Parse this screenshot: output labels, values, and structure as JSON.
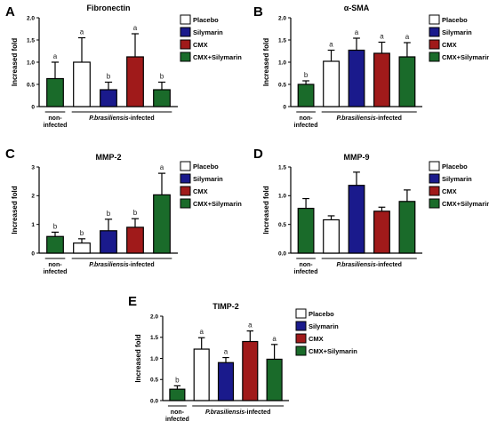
{
  "colors": {
    "placebo": "#ffffff",
    "silymarin": "#1a1a8c",
    "cmx": "#a01a1a",
    "cmx_silymarin": "#1a6b2a",
    "noninfected": "#1a6b2a",
    "axis": "#000000"
  },
  "legend": {
    "placebo": "Placebo",
    "silymarin": "Silymarin",
    "cmx": "CMX",
    "cmx_silymarin": "CMX+Silymarin"
  },
  "groups": {
    "noninfected_line1": "non-",
    "noninfected_line2": "infected",
    "infected_species": "P.brasiliensis",
    "infected_suffix": "-infected"
  },
  "chart_data": [
    {
      "panel": "A",
      "type": "bar",
      "title": "Fibronectin",
      "ylabel": "Increased fold",
      "ylim": [
        0,
        2
      ],
      "yticks": [
        "0",
        "0.5",
        "1.0",
        "1.5",
        "2.0"
      ],
      "categories": [
        "non-infected",
        "Placebo",
        "Silymarin",
        "CMX",
        "CMX+Silymarin"
      ],
      "values": [
        0.63,
        1.0,
        0.38,
        1.12,
        0.38
      ],
      "errors": [
        0.37,
        0.55,
        0.17,
        0.52,
        0.17
      ],
      "sig": [
        "a",
        "a",
        "b",
        "a",
        "b"
      ]
    },
    {
      "panel": "B",
      "type": "bar",
      "title": "α-SMA",
      "ylabel": "Increased fold",
      "ylim": [
        0,
        2
      ],
      "yticks": [
        "0",
        "0.5",
        "1.0",
        "1.5",
        "2.0"
      ],
      "categories": [
        "non-infected",
        "Placebo",
        "Silymarin",
        "CMX",
        "CMX+Silymarin"
      ],
      "values": [
        0.5,
        1.02,
        1.27,
        1.2,
        1.12
      ],
      "errors": [
        0.08,
        0.25,
        0.27,
        0.25,
        0.32
      ],
      "sig": [
        "b",
        "a",
        "a",
        "a",
        "a"
      ]
    },
    {
      "panel": "C",
      "type": "bar",
      "title": "MMP-2",
      "ylabel": "Increased fold",
      "ylim": [
        0,
        3
      ],
      "yticks": [
        "0",
        "1",
        "2",
        "3"
      ],
      "categories": [
        "non-infected",
        "Placebo",
        "Silymarin",
        "CMX",
        "CMX+Silymarin"
      ],
      "values": [
        0.58,
        0.35,
        0.78,
        0.9,
        2.03
      ],
      "errors": [
        0.15,
        0.15,
        0.4,
        0.3,
        0.75
      ],
      "sig": [
        "b",
        "b",
        "b",
        "b",
        "a"
      ]
    },
    {
      "panel": "D",
      "type": "bar",
      "title": "MMP-9",
      "ylabel": "Increased fold",
      "ylim": [
        0,
        1.5
      ],
      "yticks": [
        "0.0",
        "0.5",
        "1.0",
        "1.5"
      ],
      "categories": [
        "non-infected",
        "Placebo",
        "Silymarin",
        "CMX",
        "CMX+Silymarin"
      ],
      "values": [
        0.78,
        0.58,
        1.18,
        0.73,
        0.9
      ],
      "errors": [
        0.17,
        0.07,
        0.23,
        0.07,
        0.2
      ],
      "sig": [
        "",
        "",
        "",
        "",
        ""
      ]
    },
    {
      "panel": "E",
      "type": "bar",
      "title": "TIMP-2",
      "ylabel": "Increased fold",
      "ylim": [
        0,
        2
      ],
      "yticks": [
        "0.0",
        "0.5",
        "1.0",
        "1.5",
        "2.0"
      ],
      "categories": [
        "non-infected",
        "Placebo",
        "Silymarin",
        "CMX",
        "CMX+Silymarin"
      ],
      "values": [
        0.27,
        1.22,
        0.9,
        1.4,
        0.98
      ],
      "errors": [
        0.08,
        0.27,
        0.12,
        0.25,
        0.35
      ],
      "sig": [
        "b",
        "a",
        "a",
        "a",
        "a"
      ]
    }
  ]
}
